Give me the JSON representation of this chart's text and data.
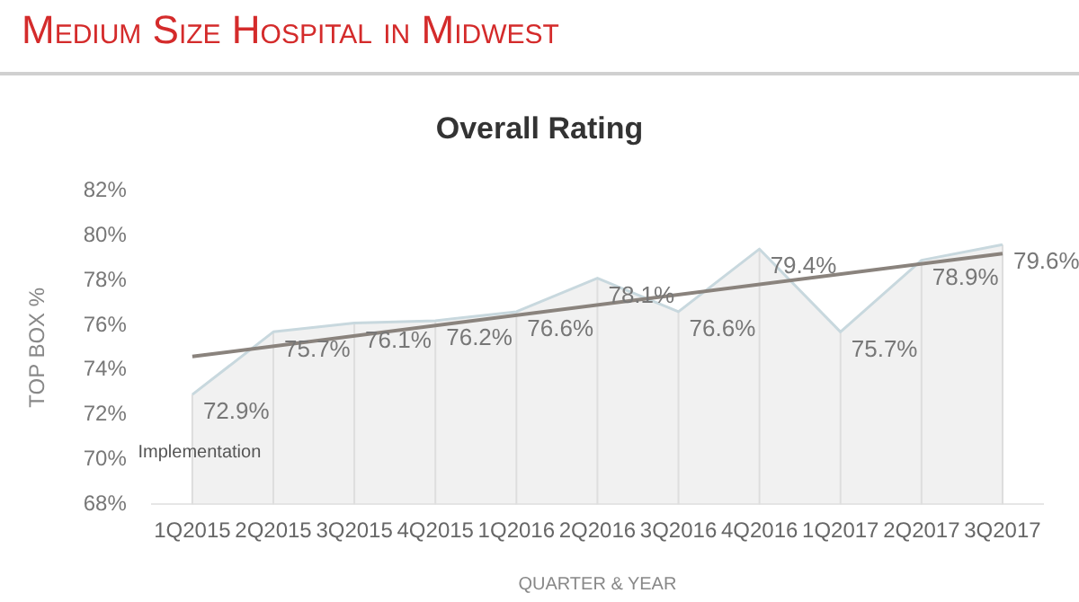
{
  "chart_data": {
    "type": "area",
    "title": "Medium Size Hospital in Midwest",
    "subtitle": "Overall Rating",
    "xlabel": "QUARTER & YEAR",
    "ylabel": "TOP BOX %",
    "categories": [
      "1Q2015",
      "2Q2015",
      "3Q2015",
      "4Q2015",
      "1Q2016",
      "2Q2016",
      "3Q2016",
      "4Q2016",
      "1Q2017",
      "2Q2017",
      "3Q2017"
    ],
    "series": [
      {
        "color": "#c8d8de",
        "values": [
          72.9,
          75.7,
          76.1,
          76.2,
          76.6,
          78.1,
          76.6,
          79.4,
          75.7,
          78.9,
          79.6
        ],
        "value_labels": [
          "72.9%",
          "75.7%",
          "76.1%",
          "76.2%",
          "76.6%",
          "78.1%",
          "76.6%",
          "79.4%",
          "75.7%",
          "78.9%",
          "79.6%"
        ]
      },
      {
        "type": "line",
        "color": "#8a837d",
        "x": [
          "1Q2015",
          "3Q2017"
        ],
        "values": [
          74.6,
          79.2
        ]
      }
    ],
    "ylim": [
      68,
      82
    ],
    "yticks": [
      {
        "value": 68,
        "label": "68%"
      },
      {
        "value": 70,
        "label": "70%"
      },
      {
        "value": 72,
        "label": "72%"
      },
      {
        "value": 74,
        "label": "74%"
      },
      {
        "value": 76,
        "label": "76%"
      },
      {
        "value": 78,
        "label": "78%"
      },
      {
        "value": 80,
        "label": "80%"
      },
      {
        "value": 82,
        "label": "82%"
      }
    ],
    "grid": "x",
    "legend": false,
    "marker": "none",
    "annotations": [
      {
        "text": "Implementation",
        "x": "1Q2015",
        "y": 70.3
      }
    ]
  }
}
